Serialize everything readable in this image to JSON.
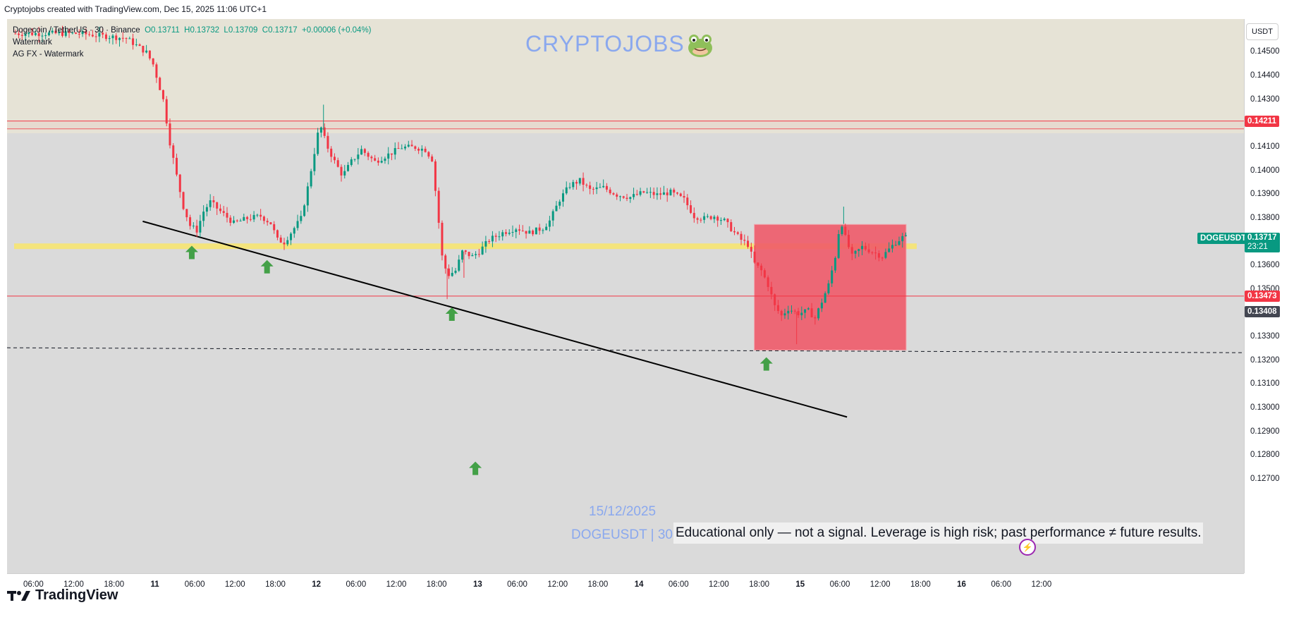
{
  "header": {
    "text": "Cryptojobs created with TradingView.com, Dec 15, 2025 11:06 UTC+1"
  },
  "legend": {
    "symbol": "Dogecoin / TetherUS · 30 · Binance",
    "o": "O0.13711",
    "h": "H0.13732",
    "l": "L0.13709",
    "c": "C0.13717",
    "change": "+0.00006 (+0.04%)",
    "line2": "Watermark",
    "line3": "AG FX - Watermark"
  },
  "watermark": {
    "title": "CRYPTOJOBS",
    "icon": "frog-icon",
    "date": "15/12/2025",
    "symbol": "DOGEUSDT | 30"
  },
  "disclaimer": "Educational only — not a signal. Leverage is high risk; past performance ≠ future results.",
  "axis": {
    "currency": "USDT"
  },
  "price_labels": {
    "resistance": "0.14211",
    "support": "0.13473",
    "current_name": "DOGEUSDT",
    "current": "0.13717",
    "countdown": "23:21",
    "crosshair": "0.13408"
  },
  "brand": "TradingView",
  "colors": {
    "up": "#089981",
    "down": "#f23645",
    "zone_red": "#f05868",
    "yellow": "#f4e47c",
    "resistance": "#f23645",
    "trend": "#000000",
    "arrow": "#43a047",
    "watermark": "#8aa8ee"
  },
  "chart_data": {
    "type": "candlestick",
    "title": "Dogecoin / TetherUS · 30 · Binance",
    "xlabel": "",
    "ylabel": "",
    "ylim": [
      0.1268,
      0.1455
    ],
    "y_ticks": [
      0.145,
      0.144,
      0.143,
      0.141,
      0.14,
      0.139,
      0.138,
      0.136,
      0.135,
      0.133,
      0.132,
      0.131,
      0.13,
      0.129,
      0.128,
      0.127
    ],
    "y_tick_labels": [
      "0.14500",
      "0.14400",
      "0.14300",
      "0.14100",
      "0.14000",
      "0.13900",
      "0.13800",
      "0.13600",
      "0.13500",
      "0.13300",
      "0.13200",
      "0.13100",
      "0.13000",
      "0.12900",
      "0.12800",
      "0.12700"
    ],
    "x_ticks": [
      {
        "t": 0,
        "label": "06:00"
      },
      {
        "t": 6,
        "label": "12:00"
      },
      {
        "t": 12,
        "label": "18:00"
      },
      {
        "t": 18,
        "label": "11"
      },
      {
        "t": 24,
        "label": "06:00"
      },
      {
        "t": 30,
        "label": "12:00"
      },
      {
        "t": 36,
        "label": "18:00"
      },
      {
        "t": 42,
        "label": "12"
      },
      {
        "t": 48,
        "label": "06:00"
      },
      {
        "t": 54,
        "label": "12:00"
      },
      {
        "t": 60,
        "label": "18:00"
      },
      {
        "t": 66,
        "label": "13"
      },
      {
        "t": 72,
        "label": "06:00"
      },
      {
        "t": 78,
        "label": "12:00"
      },
      {
        "t": 84,
        "label": "18:00"
      },
      {
        "t": 90,
        "label": "14"
      },
      {
        "t": 96,
        "label": "06:00"
      },
      {
        "t": 102,
        "label": "12:00"
      },
      {
        "t": 108,
        "label": "18:00"
      },
      {
        "t": 114,
        "label": "15"
      },
      {
        "t": 120,
        "label": "06:00"
      },
      {
        "t": 126,
        "label": "12:00"
      },
      {
        "t": 132,
        "label": "18:00"
      },
      {
        "t": 138,
        "label": "16"
      },
      {
        "t": 144,
        "label": "06:00"
      },
      {
        "t": 150,
        "label": "12:00"
      }
    ],
    "price_path": [
      [
        -3,
        0.1458
      ],
      [
        7,
        0.1458
      ],
      [
        14,
        0.1456
      ],
      [
        17,
        0.145
      ],
      [
        18,
        0.1445
      ],
      [
        19.5,
        0.143
      ],
      [
        20.5,
        0.1412
      ],
      [
        21.5,
        0.1398
      ],
      [
        22.5,
        0.1385
      ],
      [
        23.5,
        0.1377
      ],
      [
        24.5,
        0.1375
      ],
      [
        25.5,
        0.1383
      ],
      [
        26.5,
        0.1387
      ],
      [
        28,
        0.1383
      ],
      [
        30,
        0.1378
      ],
      [
        32,
        0.138
      ],
      [
        34,
        0.1381
      ],
      [
        35.5,
        0.1378
      ],
      [
        36.5,
        0.1371
      ],
      [
        37.5,
        0.137
      ],
      [
        38.5,
        0.1374
      ],
      [
        40,
        0.138
      ],
      [
        41,
        0.1393
      ],
      [
        42,
        0.1408
      ],
      [
        42.8,
        0.142
      ],
      [
        43.8,
        0.1411
      ],
      [
        45,
        0.1404
      ],
      [
        46.2,
        0.1398
      ],
      [
        47.5,
        0.1404
      ],
      [
        49,
        0.1409
      ],
      [
        51,
        0.1404
      ],
      [
        53,
        0.1407
      ],
      [
        55,
        0.141
      ],
      [
        57,
        0.141
      ],
      [
        58.5,
        0.1409
      ],
      [
        59.5,
        0.1405
      ],
      [
        60.3,
        0.1384
      ],
      [
        61,
        0.1364
      ],
      [
        61.8,
        0.1356
      ],
      [
        63,
        0.1358
      ],
      [
        64,
        0.1366
      ],
      [
        65.5,
        0.1364
      ],
      [
        66.5,
        0.1366
      ],
      [
        68,
        0.1371
      ],
      [
        70,
        0.1374
      ],
      [
        72,
        0.1376
      ],
      [
        74,
        0.1374
      ],
      [
        76,
        0.1376
      ],
      [
        77,
        0.1379
      ],
      [
        78.5,
        0.1388
      ],
      [
        80,
        0.1394
      ],
      [
        81.5,
        0.1396
      ],
      [
        83,
        0.1392
      ],
      [
        85,
        0.1393
      ],
      [
        87,
        0.139
      ],
      [
        89,
        0.1389
      ],
      [
        91,
        0.1391
      ],
      [
        93,
        0.139
      ],
      [
        95,
        0.1391
      ],
      [
        97,
        0.1388
      ],
      [
        98.5,
        0.1381
      ],
      [
        100,
        0.138
      ],
      [
        101.5,
        0.1381
      ],
      [
        103,
        0.1379
      ],
      [
        104.5,
        0.1374
      ],
      [
        105.5,
        0.1371
      ],
      [
        106.5,
        0.1369
      ],
      [
        107.5,
        0.1361
      ],
      [
        108.5,
        0.1358
      ],
      [
        109.5,
        0.1352
      ],
      [
        110.5,
        0.1343
      ],
      [
        111.5,
        0.1339
      ],
      [
        112.5,
        0.1342
      ],
      [
        114,
        0.134
      ],
      [
        115.5,
        0.1341
      ],
      [
        116.5,
        0.1338
      ],
      [
        117.5,
        0.1345
      ],
      [
        118.5,
        0.1352
      ],
      [
        119.5,
        0.1364
      ],
      [
        120.3,
        0.138
      ],
      [
        121,
        0.1372
      ],
      [
        122,
        0.1364
      ],
      [
        123.5,
        0.1368
      ],
      [
        125,
        0.1366
      ],
      [
        126.5,
        0.1364
      ],
      [
        127.5,
        0.1367
      ],
      [
        128.5,
        0.137
      ],
      [
        129.5,
        0.1372
      ]
    ],
    "levels": {
      "resistance": 0.14211,
      "resistance_band_low": 0.14178,
      "support": 0.13473,
      "yellow_zone": 0.13683,
      "dashed": 0.13255,
      "current": 0.13717
    },
    "trendline": [
      [
        16.2,
        0.13788
      ],
      [
        121,
        0.12963
      ]
    ],
    "zone": {
      "t0": 107.2,
      "t1": 129.8,
      "top": 0.13775,
      "bottom": 0.13245
    },
    "arrows": [
      [
        23.5,
        0.13685
      ],
      [
        34.7,
        0.13625
      ],
      [
        62.2,
        0.13425
      ],
      [
        65.7,
        0.12775
      ],
      [
        109,
        0.13215
      ]
    ]
  }
}
